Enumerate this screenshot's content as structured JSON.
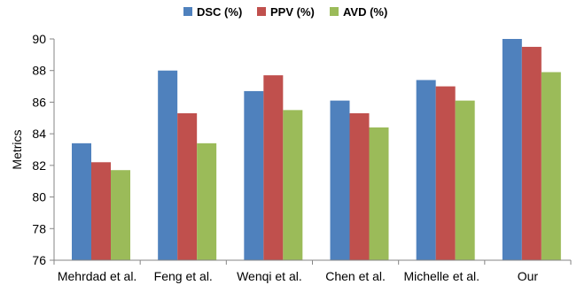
{
  "chart_data": {
    "type": "bar",
    "categories": [
      "Mehrdad et al.",
      "Feng et al.",
      "Wenqi et al.",
      "Chen et al.",
      "Michelle et al.",
      "Our"
    ],
    "series": [
      {
        "name": "DSC (%)",
        "color": "#4F81BD",
        "values": [
          83.4,
          88.0,
          86.7,
          86.1,
          87.4,
          90.0
        ]
      },
      {
        "name": "PPV (%)",
        "color": "#C0504D",
        "values": [
          82.2,
          85.3,
          87.7,
          85.3,
          87.0,
          89.5
        ]
      },
      {
        "name": "AVD (%)",
        "color": "#9BBB59",
        "values": [
          81.7,
          83.4,
          85.5,
          84.4,
          86.1,
          87.9
        ]
      }
    ],
    "ylabel": "Metrics",
    "xlabel": "",
    "title": "",
    "ylim": [
      76,
      90
    ],
    "yticks": [
      76,
      78,
      80,
      82,
      84,
      86,
      88,
      90
    ],
    "grid": false,
    "legend_position": "top"
  }
}
